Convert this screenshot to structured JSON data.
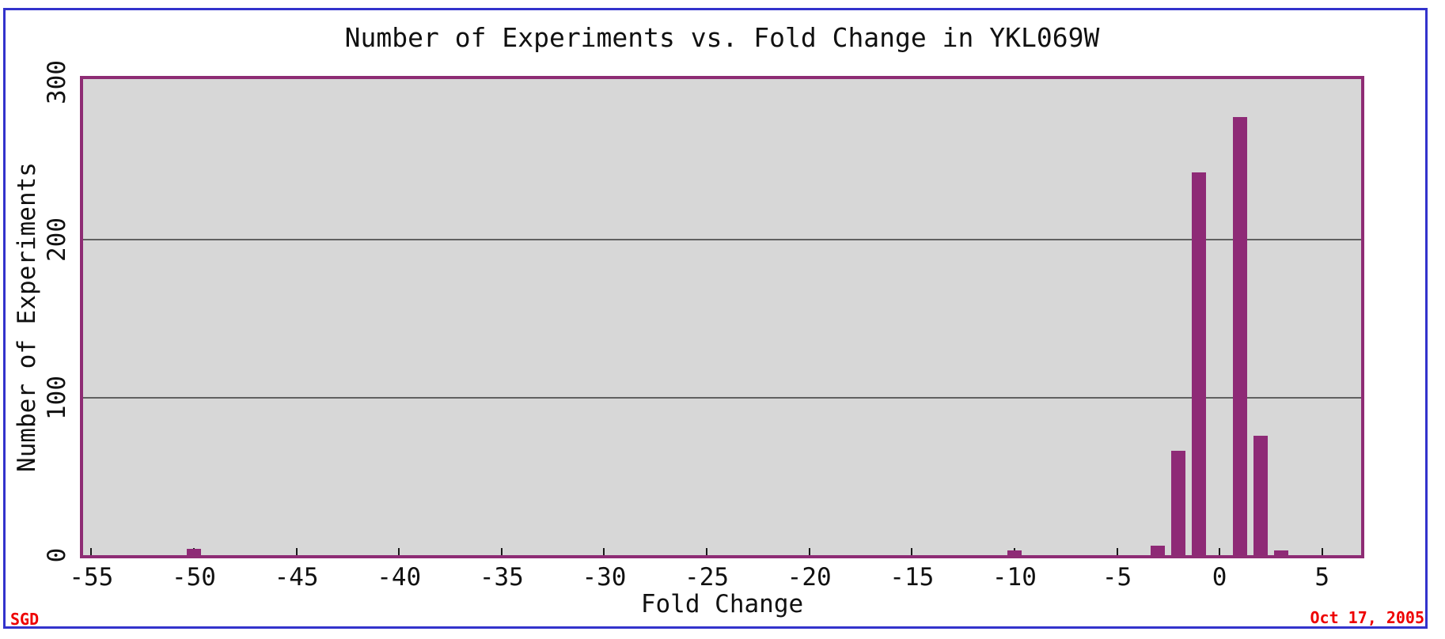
{
  "page": {
    "kind": "histogram-image",
    "source_label": "SGD",
    "date_label": "Oct 17, 2005"
  },
  "colors": {
    "outer_border": "#3333cc",
    "plot_background": "#d7d7d7",
    "plot_frame": "#8e2c74",
    "bar": "#8e2a76",
    "gridline": "#606060",
    "footer_text": "#ee0000",
    "text": "#111111"
  },
  "chart_data": {
    "type": "bar",
    "title": "Number of Experiments vs. Fold Change in YKL069W",
    "xlabel": "Fold Change",
    "ylabel": "Number of Experiments",
    "x": [
      -50,
      -10,
      -3,
      -2,
      -1,
      1,
      2,
      3
    ],
    "values": [
      4,
      3,
      6,
      66,
      243,
      278,
      76,
      3
    ],
    "bar_width_units": 0.7,
    "xlim": [
      -55.4,
      6.9
    ],
    "ylim": [
      0,
      302
    ],
    "xticks": [
      -55,
      -50,
      -45,
      -40,
      -35,
      -30,
      -25,
      -20,
      -15,
      -10,
      -5,
      0,
      5
    ],
    "yticks": [
      0,
      100,
      200,
      300
    ],
    "gridlines_y": [
      100,
      200
    ],
    "grid": "horizontal",
    "legend_position": "none"
  }
}
